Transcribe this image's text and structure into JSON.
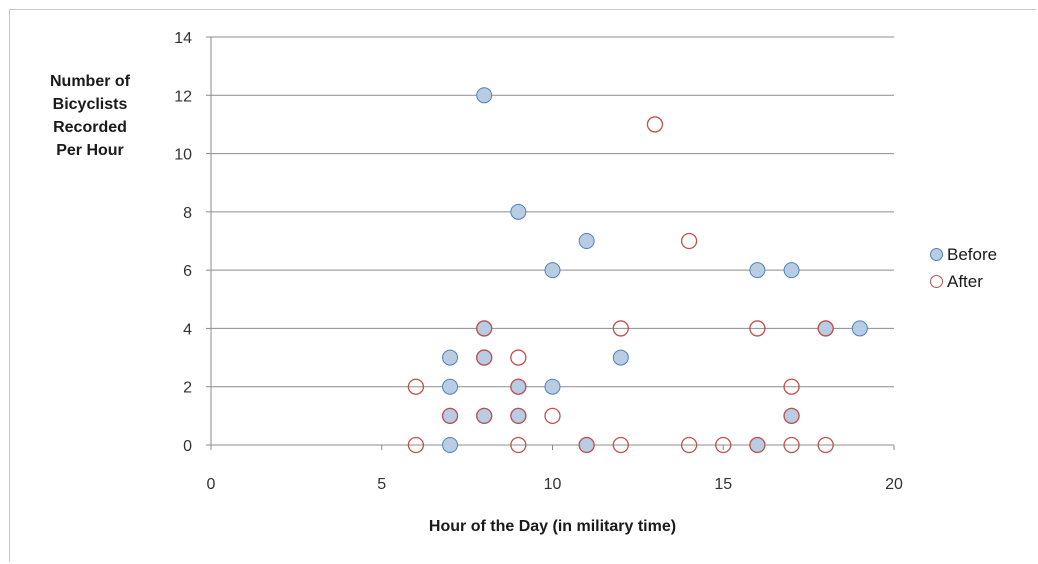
{
  "chart_data": {
    "type": "scatter",
    "title": "",
    "xlabel": "Hour of the Day (in military time)",
    "ylabel": "Number of\nBicyclists\nRecorded\nPer Hour",
    "xlim": [
      0,
      20
    ],
    "ylim": [
      0,
      14
    ],
    "x_ticks": [
      "0",
      "5",
      "10",
      "15",
      "20"
    ],
    "y_ticks": [
      "0",
      "2",
      "4",
      "6",
      "8",
      "10",
      "12",
      "14"
    ],
    "grid": "horizontal",
    "legend_position": "right",
    "series": [
      {
        "name": "Before",
        "marker": "filled-circle",
        "fill": "#b8cce4",
        "stroke": "#4f81bd",
        "points": [
          [
            7,
            0
          ],
          [
            7,
            1
          ],
          [
            7,
            2
          ],
          [
            7,
            3
          ],
          [
            8,
            1
          ],
          [
            8,
            3
          ],
          [
            8,
            4
          ],
          [
            8,
            12
          ],
          [
            9,
            1
          ],
          [
            9,
            2
          ],
          [
            9,
            8
          ],
          [
            10,
            2
          ],
          [
            10,
            6
          ],
          [
            11,
            0
          ],
          [
            11,
            7
          ],
          [
            12,
            3
          ],
          [
            16,
            0
          ],
          [
            16,
            6
          ],
          [
            17,
            1
          ],
          [
            17,
            6
          ],
          [
            18,
            4
          ],
          [
            19,
            4
          ]
        ]
      },
      {
        "name": "After",
        "marker": "open-circle",
        "fill": "none",
        "stroke": "#c0504d",
        "points": [
          [
            6,
            0
          ],
          [
            6,
            2
          ],
          [
            7,
            1
          ],
          [
            8,
            1
          ],
          [
            8,
            3
          ],
          [
            8,
            4
          ],
          [
            9,
            0
          ],
          [
            9,
            1
          ],
          [
            9,
            2
          ],
          [
            9,
            3
          ],
          [
            10,
            1
          ],
          [
            11,
            0
          ],
          [
            12,
            0
          ],
          [
            12,
            4
          ],
          [
            13,
            11
          ],
          [
            14,
            0
          ],
          [
            14,
            7
          ],
          [
            15,
            0
          ],
          [
            16,
            0
          ],
          [
            16,
            4
          ],
          [
            17,
            0
          ],
          [
            17,
            1
          ],
          [
            17,
            2
          ],
          [
            18,
            0
          ],
          [
            18,
            4
          ]
        ]
      }
    ]
  }
}
